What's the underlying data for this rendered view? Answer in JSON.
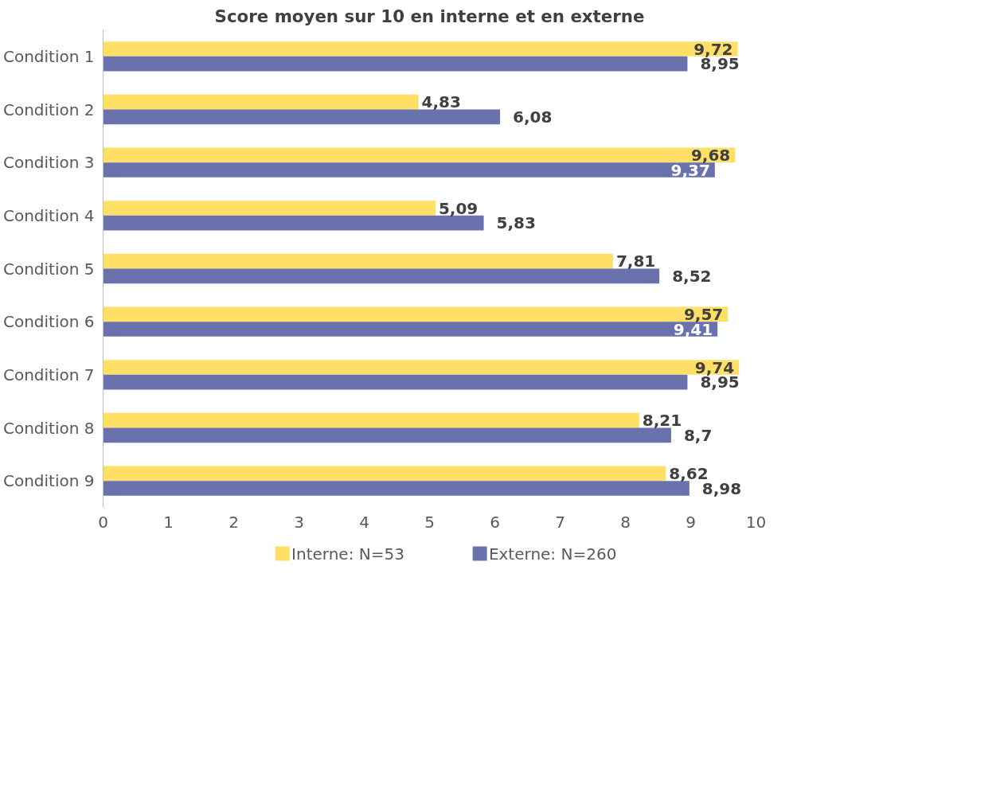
{
  "chart_data": {
    "type": "bar",
    "orientation": "horizontal",
    "title": "Score moyen sur 10 en interne et en externe",
    "categories": [
      "Condition 1",
      "Condition 2",
      "Condition 3",
      "Condition 4",
      "Condition 5",
      "Condition 6",
      "Condition 7",
      "Condition 8",
      "Condition 9"
    ],
    "series": [
      {
        "name": "Interne: N=53",
        "color": "#ffdf66",
        "values": [
          9.72,
          4.83,
          9.68,
          5.09,
          7.81,
          9.57,
          9.74,
          8.21,
          8.62
        ],
        "value_labels": [
          "9,72",
          "4,83",
          "9,68",
          "5,09",
          "7,81",
          "9,57",
          "9,74",
          "8,21",
          "8,62"
        ]
      },
      {
        "name": "Externe: N=260",
        "color": "#6a72ad",
        "values": [
          8.95,
          6.08,
          9.37,
          5.83,
          8.52,
          9.41,
          8.95,
          8.7,
          8.98
        ],
        "value_labels": [
          "8,95",
          "6,08",
          "9,37",
          "5,83",
          "8,52",
          "9,41",
          "8,95",
          "8,7",
          "8,98"
        ]
      }
    ],
    "xlim": [
      0,
      10
    ],
    "xticks": [
      0,
      1,
      2,
      3,
      4,
      5,
      6,
      7,
      8,
      9,
      10
    ],
    "grid": false,
    "legend": "bottom"
  }
}
